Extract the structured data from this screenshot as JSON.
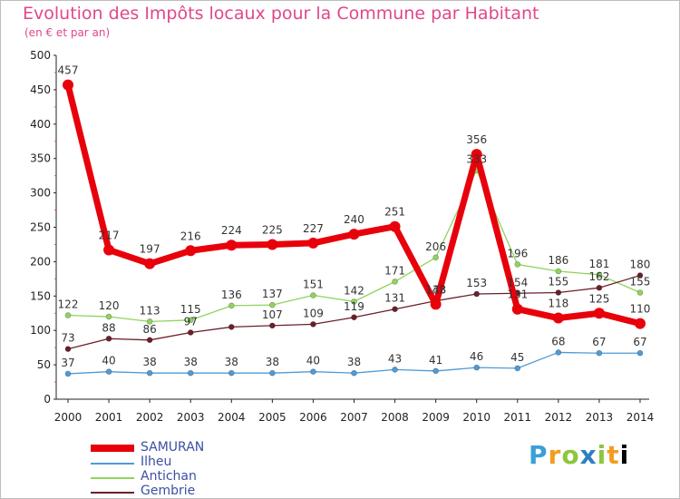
{
  "title": "Evolution des Impôts locaux pour la Commune par Habitant",
  "subtitle": "(en € et par an)",
  "brand": "Proxiti",
  "chart_data": {
    "type": "line",
    "x": [
      "2000",
      "2001",
      "2002",
      "2003",
      "2004",
      "2005",
      "2006",
      "2007",
      "2008",
      "2009",
      "2010",
      "2011",
      "2012",
      "2013",
      "2014"
    ],
    "ylim": [
      0,
      500
    ],
    "yticks": [
      0,
      50,
      100,
      150,
      200,
      250,
      300,
      350,
      400,
      450,
      500
    ],
    "grid": false,
    "legend_position": "bottom-left",
    "series": [
      {
        "name": "SAMURAN",
        "color": "#e8000b",
        "values": [
          457,
          217,
          197,
          216,
          224,
          225,
          227,
          240,
          251,
          138,
          356,
          131,
          118,
          125,
          110
        ]
      },
      {
        "name": "Ilheu",
        "color": "#4f9bd6",
        "values": [
          37,
          40,
          38,
          38,
          38,
          38,
          40,
          38,
          43,
          41,
          46,
          45,
          68,
          67,
          67
        ]
      },
      {
        "name": "Antichan",
        "color": "#8fd45c",
        "values": [
          122,
          120,
          113,
          115,
          136,
          137,
          151,
          142,
          171,
          206,
          333,
          196,
          186,
          181,
          155
        ]
      },
      {
        "name": "Gembrie",
        "color": "#6b1f2a",
        "values": [
          73,
          88,
          86,
          97,
          105,
          107,
          109,
          119,
          131,
          143,
          153,
          154,
          155,
          162,
          180
        ]
      }
    ],
    "labels_shown": [
      [
        "457",
        "217",
        "197",
        "216",
        "224",
        "225",
        "227",
        "240",
        "251",
        "138",
        "356",
        "131",
        "118",
        "125",
        "110"
      ],
      [
        "37",
        "40",
        "38",
        "38",
        "38",
        "38",
        "40",
        "38",
        "43",
        "41",
        "46",
        "45",
        "68",
        "67",
        "67"
      ],
      [
        "122",
        "120",
        "113",
        "115",
        "136",
        "137",
        "151",
        "142",
        "171",
        "206",
        "333",
        "196",
        "186",
        "181",
        "155"
      ],
      [
        "73",
        "88",
        "86",
        "97",
        "",
        "107",
        "109",
        "119",
        "131",
        "143",
        "153",
        "154",
        "155",
        "162",
        "180"
      ]
    ]
  }
}
